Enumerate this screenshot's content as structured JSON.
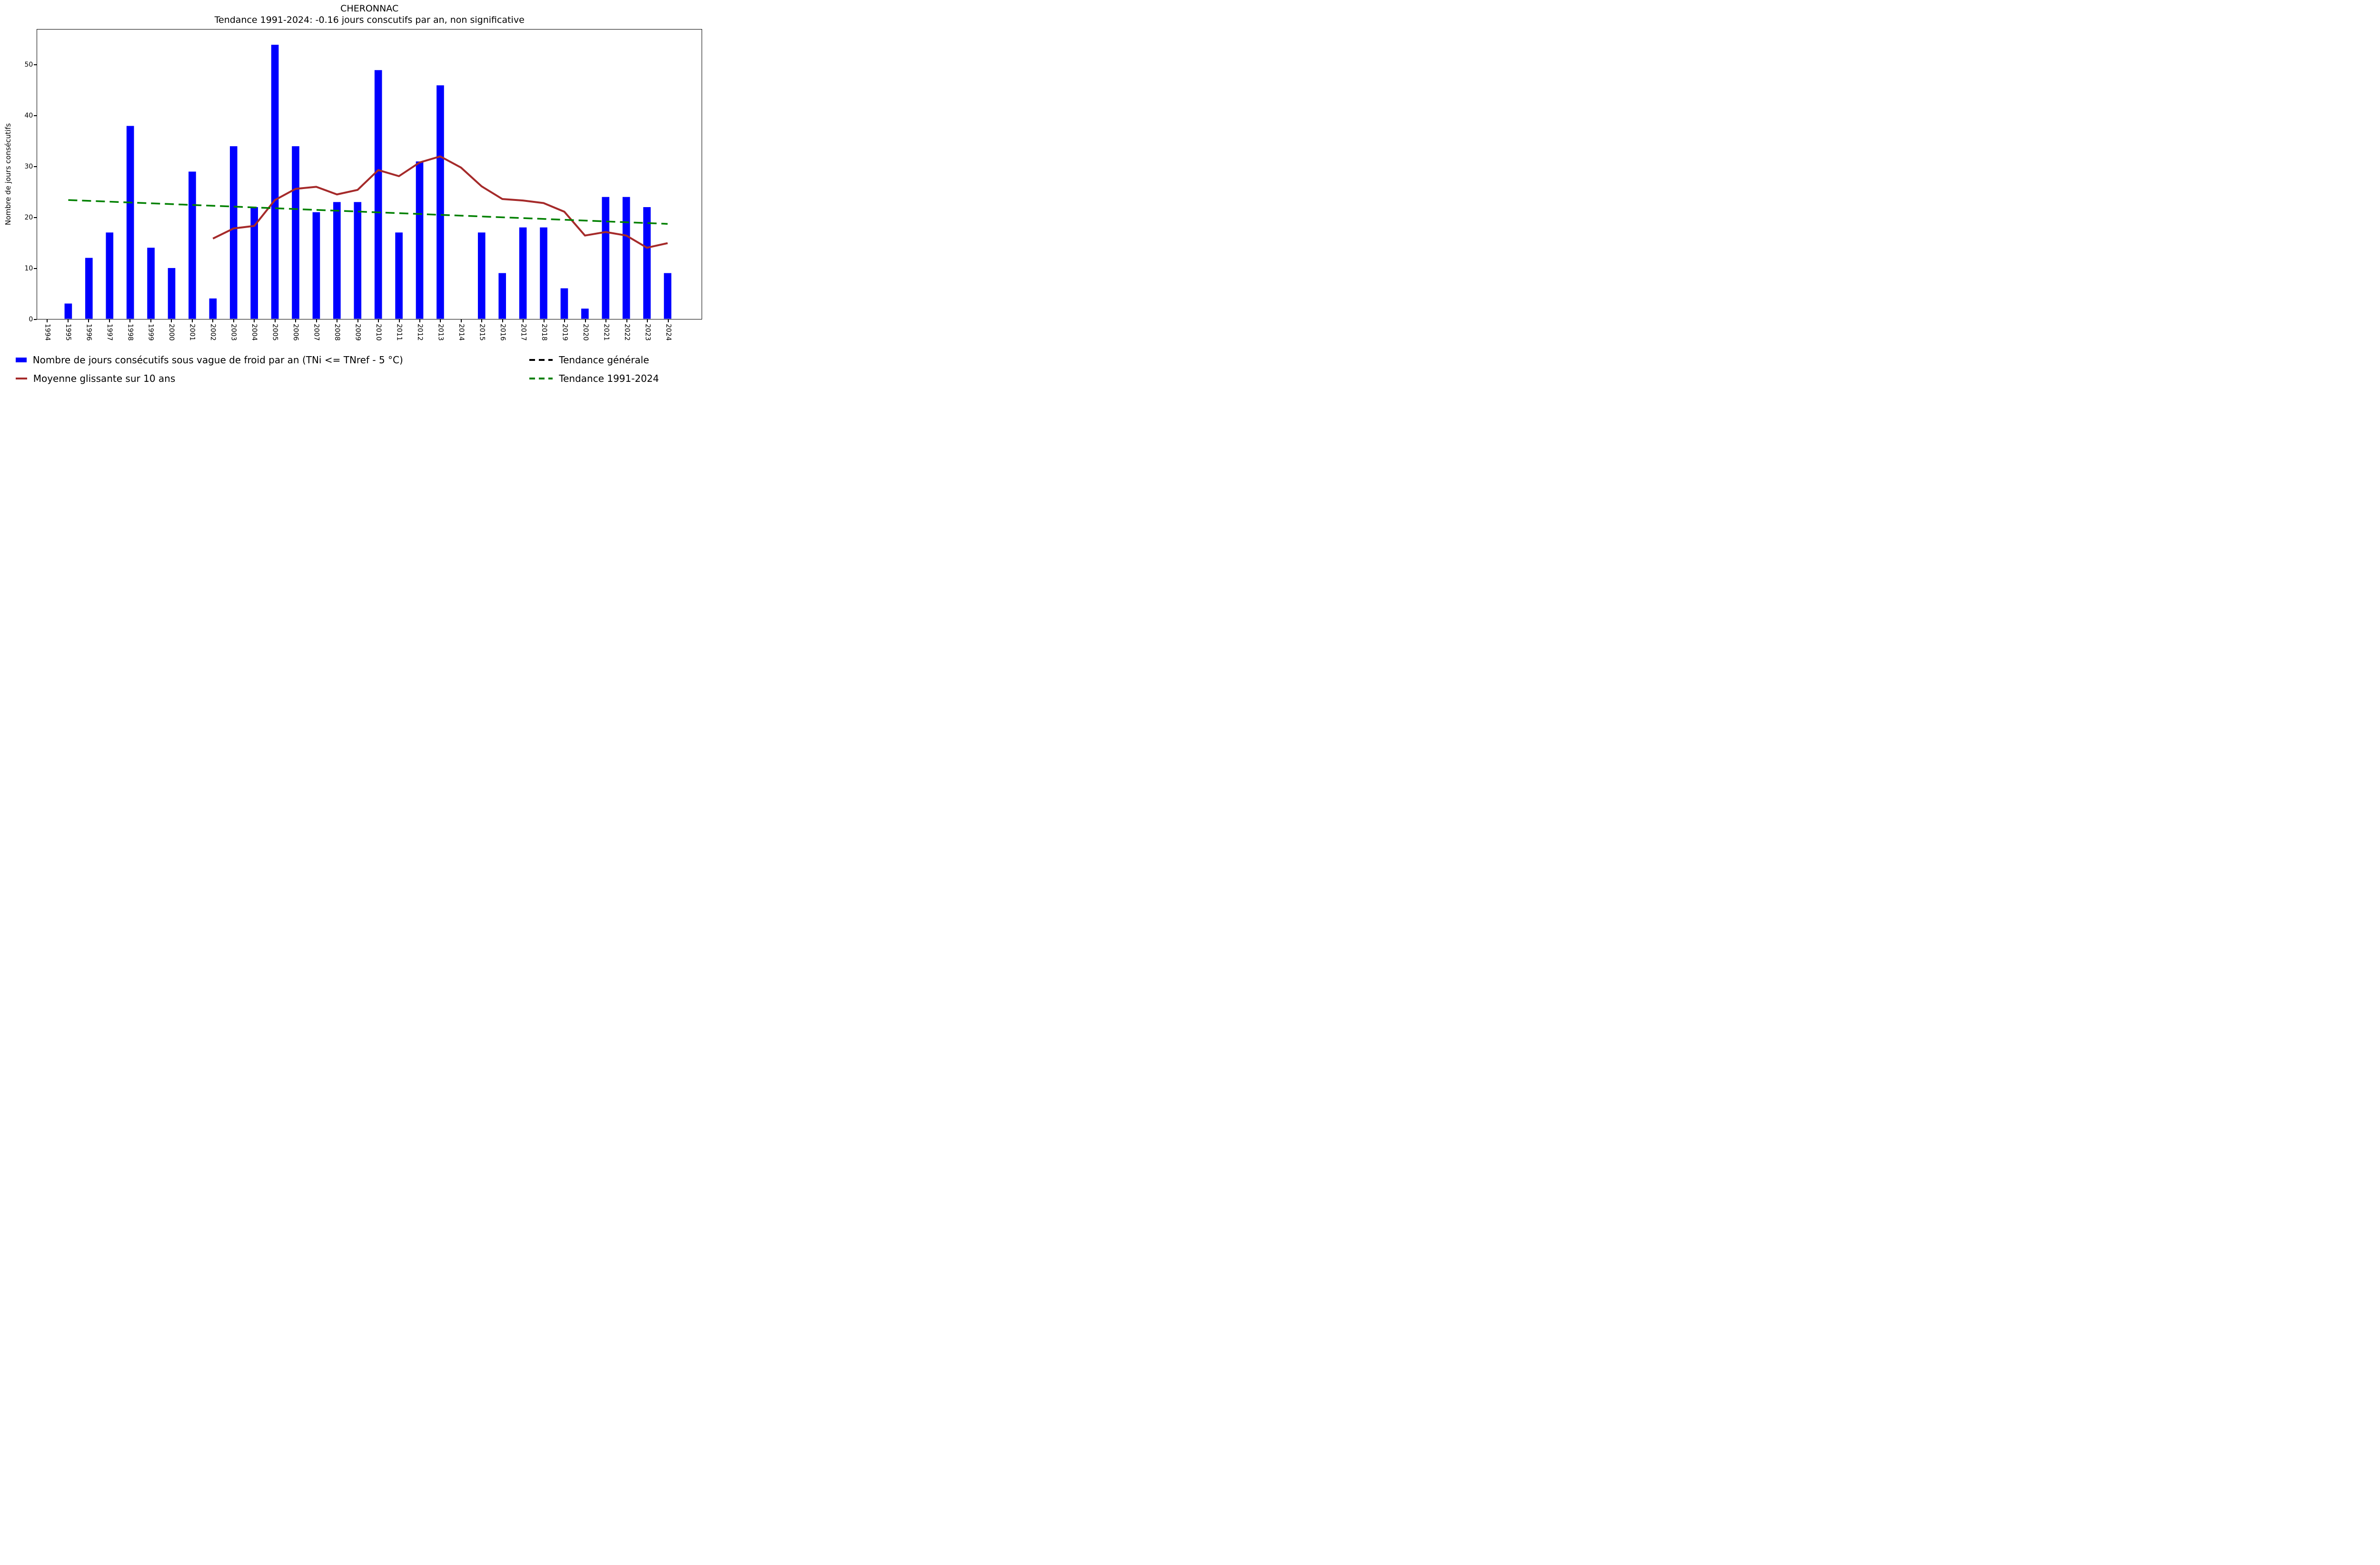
{
  "figure": {
    "title": "CHERONNAC",
    "subtitle": "Tendance 1991-2024: -0.16 jours conscutifs par an, non significative",
    "ylabel": "Nombre de jours consécutifs"
  },
  "legend": {
    "items": [
      {
        "label": "Nombre de jours consécutifs sous vague de froid par an (TNi <= TNref - 5 °C)",
        "swatch": "bar-swatch",
        "color": "#0000FF"
      },
      {
        "label": "Moyenne glissante sur 10 ans",
        "swatch": "line-swatch",
        "color": "#A52A2A"
      },
      {
        "label": "Tendance générale",
        "swatch": "dash-swatch",
        "color": "#000000"
      },
      {
        "label": "Tendance 1991-2024",
        "swatch": "dash-swatch",
        "color": "#008000"
      }
    ]
  },
  "chart_data": {
    "type": "bar",
    "title": "CHERONNAC",
    "subtitle": "Tendance 1991-2024: -0.16 jours conscutifs par an, non significative",
    "xlabel": "",
    "ylabel": "Nombre de jours consécutifs",
    "ylim": [
      0,
      57
    ],
    "yticks": [
      0,
      10,
      20,
      30,
      40,
      50
    ],
    "grid": false,
    "legend_position": "below-axes",
    "categories": [
      1994,
      1995,
      1996,
      1997,
      1998,
      1999,
      2000,
      2001,
      2002,
      2003,
      2004,
      2005,
      2006,
      2007,
      2008,
      2009,
      2010,
      2011,
      2012,
      2013,
      2014,
      2015,
      2016,
      2017,
      2018,
      2019,
      2020,
      2021,
      2022,
      2023,
      2024
    ],
    "series": [
      {
        "name": "Nombre de jours consécutifs sous vague de froid par an (TNi <= TNref - 5 °C)",
        "type": "bar",
        "color": "#0000FF",
        "values": [
          0,
          3,
          12,
          17,
          38,
          14,
          10,
          29,
          4,
          34,
          22,
          54,
          34,
          21,
          23,
          23,
          49,
          17,
          31,
          46,
          0,
          17,
          9,
          18,
          18,
          6,
          2,
          24,
          24,
          22,
          9
        ]
      },
      {
        "name": "Moyenne glissante sur 10 ans",
        "type": "line",
        "color": "#A52A2A",
        "x": [
          2002,
          2003,
          2004,
          2005,
          2006,
          2007,
          2008,
          2009,
          2010,
          2011,
          2012,
          2013,
          2014,
          2015,
          2016,
          2017,
          2018,
          2019,
          2020,
          2021,
          2022,
          2023,
          2024
        ],
        "values": [
          15.8,
          17.8,
          18.3,
          23.4,
          25.6,
          26.0,
          24.5,
          25.4,
          29.3,
          28.1,
          30.8,
          32.0,
          29.8,
          26.1,
          23.6,
          23.3,
          22.8,
          21.1,
          16.4,
          17.1,
          16.4,
          14.0,
          14.9
        ]
      },
      {
        "name": "Tendance générale",
        "type": "dashed-line",
        "color": "#000000",
        "x": [],
        "values": []
      },
      {
        "name": "Tendance 1991-2024",
        "type": "dashed-line",
        "color": "#008000",
        "x": [
          1995,
          2024
        ],
        "values": [
          23.4,
          18.7
        ]
      }
    ]
  }
}
